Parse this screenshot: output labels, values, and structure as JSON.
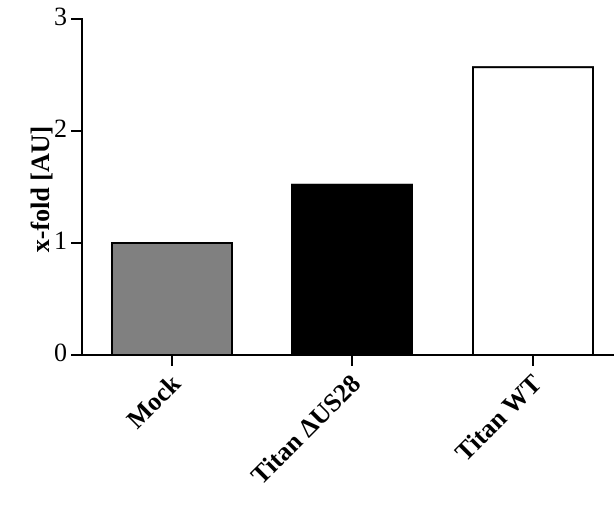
{
  "chart_data": {
    "type": "bar",
    "categories": [
      "Mock",
      "Titan ΔUS28",
      "Titan WT"
    ],
    "values": [
      1.0,
      1.52,
      2.57
    ],
    "bar_colors": [
      "#808080",
      "#000000",
      "#ffffff"
    ],
    "title": "",
    "xlabel": "",
    "ylabel": "x-fold [AU]",
    "ylim": [
      0,
      3
    ],
    "yticks": [
      0,
      1,
      2,
      3
    ],
    "grid": false,
    "legend": "none"
  }
}
